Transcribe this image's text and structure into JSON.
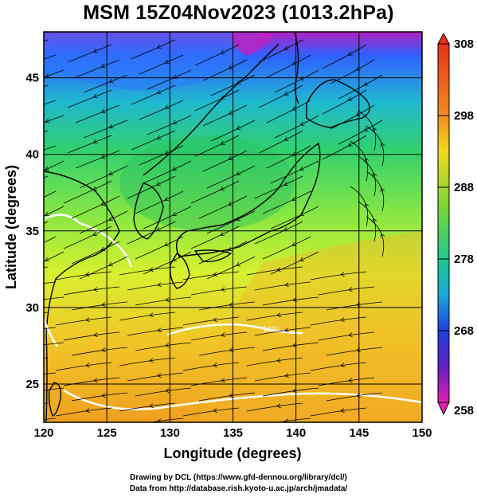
{
  "title": "MSM 15Z04Nov2023 (1013.2hPa)",
  "x_axis": {
    "label": "Longitude (degrees)",
    "ticks": [
      "120",
      "125",
      "130",
      "135",
      "140",
      "145",
      "150"
    ],
    "range": [
      120,
      150
    ]
  },
  "y_axis": {
    "label": "Latitude  (degrees)",
    "ticks": [
      "25",
      "30",
      "35",
      "40",
      "45"
    ],
    "range": [
      22.5,
      48
    ]
  },
  "colorbar": {
    "ticks": [
      "308",
      "298",
      "288",
      "278",
      "268",
      "258"
    ],
    "range": [
      258,
      308
    ]
  },
  "contour_labels": [
    "1020"
  ],
  "credits": {
    "line1": "Drawing by DCL (https://www.gfd-dennou.org/library/dcl/)",
    "line2": "Data from http://database.rish.kyoto-u.ac.jp/arch/jmadata/"
  }
}
